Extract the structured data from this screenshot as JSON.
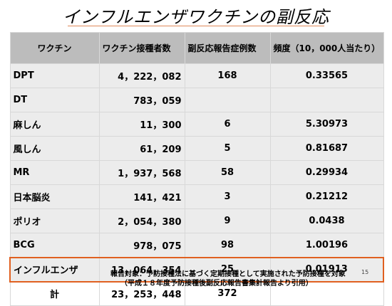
{
  "title": "インフルエンザワクチンの副反応",
  "table": {
    "headers": [
      "ワクチン",
      "ワクチン接種者数",
      "副反応報告症例数",
      "頻度（10，000人当たり）"
    ],
    "rows": [
      {
        "name": "DPT",
        "recipients": "4，222，082",
        "reports": "168",
        "frequency": "0.33565"
      },
      {
        "name": "DT",
        "recipients": "783，059",
        "reports": "",
        "frequency": ""
      },
      {
        "name": "麻しん",
        "recipients": "11，300",
        "reports": "6",
        "frequency": "5.30973"
      },
      {
        "name": "風しん",
        "recipients": "61，209",
        "reports": "5",
        "frequency": "0.81687"
      },
      {
        "name": "MR",
        "recipients": "1，937，568",
        "reports": "58",
        "frequency": "0.29934"
      },
      {
        "name": "日本脳炎",
        "recipients": "141，421",
        "reports": "3",
        "frequency": "0.21212"
      },
      {
        "name": "ポリオ",
        "recipients": "2，054，380",
        "reports": "9",
        "frequency": "0.0438"
      },
      {
        "name": "BCG",
        "recipients": "978，075",
        "reports": "98",
        "frequency": "1.00196"
      },
      {
        "name": "インフルエンザ",
        "recipients": "13，064，354",
        "reports": "25",
        "frequency": "0.01913"
      }
    ],
    "total": {
      "name": "計",
      "recipients": "23，253，448",
      "reports": "372",
      "frequency": ""
    }
  },
  "footnote": {
    "line1": "報告対象：予防接種法に基づく定期接種として実施された予防接種を対象",
    "line2": "（平成１８年度予防接種後副反応報告書集計報告より引用）"
  },
  "page_number": "15",
  "colors": {
    "highlight_border": "#e06020",
    "header_bg": "#bcbcbc",
    "row_bg": "#ececec"
  }
}
